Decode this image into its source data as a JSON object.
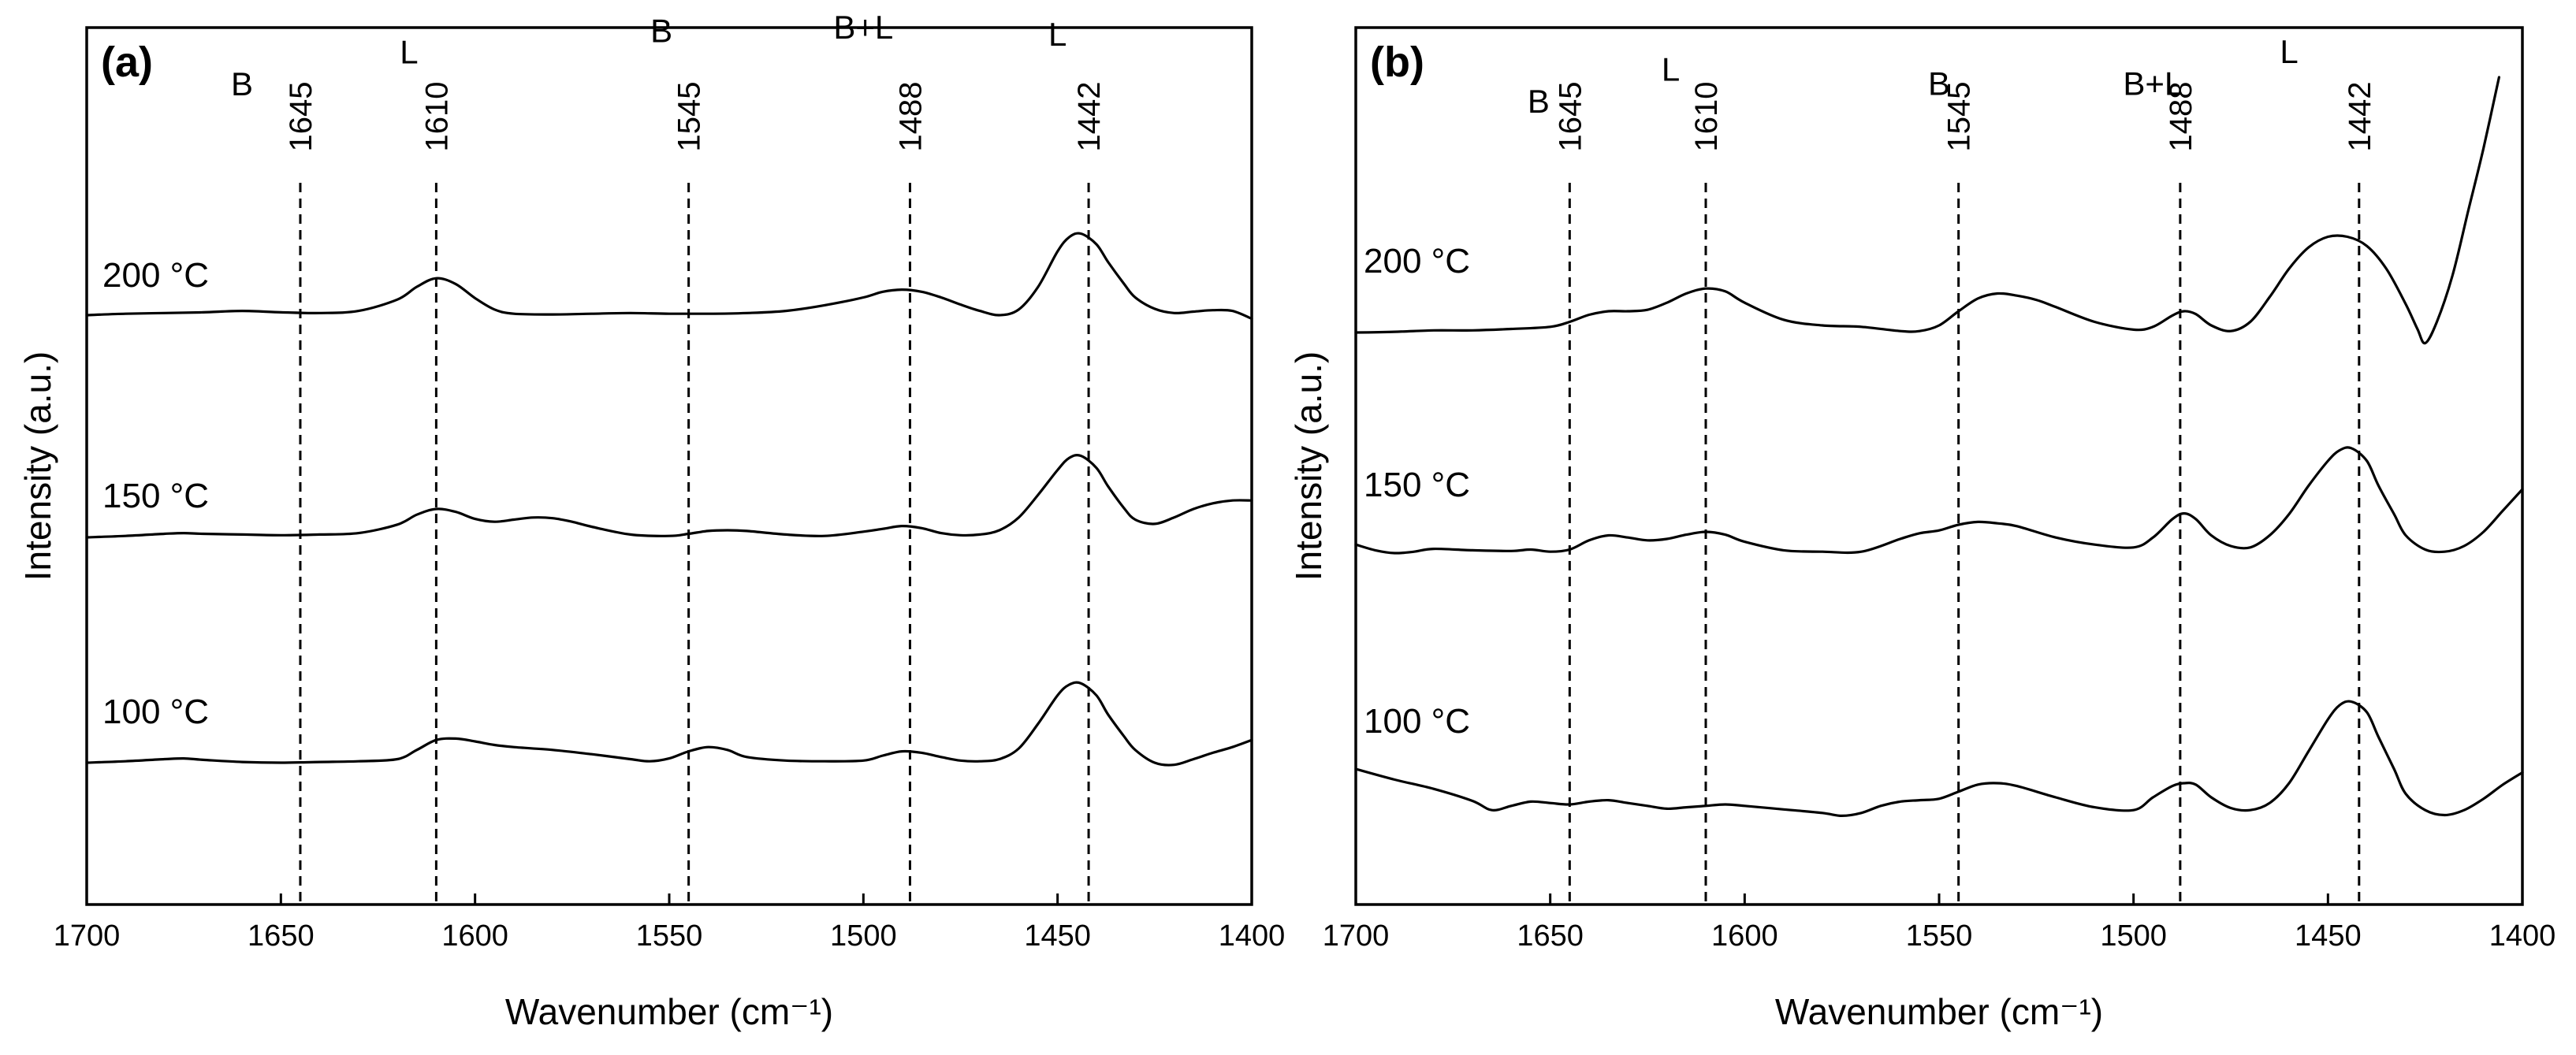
{
  "chart_data": [
    {
      "type": "line",
      "panel_label": "(a)",
      "xlabel": "Wavenumber (cm⁻¹)",
      "ylabel": "Intensity (a.u.)",
      "xlim": [
        1700,
        1400
      ],
      "x_ticks": [
        1700,
        1650,
        1600,
        1550,
        1500,
        1450,
        1400
      ],
      "reference_lines": [
        {
          "x": 1645,
          "label": "1645"
        },
        {
          "x": 1610,
          "label": "1610"
        },
        {
          "x": 1545,
          "label": "1545"
        },
        {
          "x": 1488,
          "label": "1488"
        },
        {
          "x": 1442,
          "label": "1442"
        }
      ],
      "band_labels": [
        {
          "text": "B",
          "x": 1660,
          "y": 3.1
        },
        {
          "text": "L",
          "x": 1617,
          "y": 3.55
        },
        {
          "text": "B",
          "x": 1552,
          "y": 3.85
        },
        {
          "text": "B+L",
          "x": 1500,
          "y": 3.9
        },
        {
          "text": "L",
          "x": 1450,
          "y": 3.8
        }
      ],
      "series": [
        {
          "name": "200 °C",
          "label_x": 1680,
          "x": [
            1700,
            1690,
            1680,
            1670,
            1660,
            1650,
            1640,
            1630,
            1620,
            1615,
            1610,
            1605,
            1600,
            1595,
            1590,
            1580,
            1570,
            1560,
            1550,
            1540,
            1530,
            1520,
            1510,
            1500,
            1495,
            1490,
            1485,
            1480,
            1475,
            1470,
            1465,
            1460,
            1455,
            1450,
            1447,
            1444,
            1440,
            1437,
            1433,
            1430,
            1425,
            1420,
            1415,
            1410,
            1405,
            1400
          ],
          "values": [
            0.0,
            0.02,
            0.03,
            0.04,
            0.06,
            0.04,
            0.03,
            0.06,
            0.22,
            0.4,
            0.52,
            0.44,
            0.24,
            0.08,
            0.02,
            0.01,
            0.02,
            0.03,
            0.02,
            0.02,
            0.03,
            0.06,
            0.14,
            0.25,
            0.33,
            0.36,
            0.33,
            0.25,
            0.15,
            0.06,
            0.0,
            0.08,
            0.4,
            0.9,
            1.1,
            1.15,
            1.0,
            0.75,
            0.45,
            0.25,
            0.09,
            0.03,
            0.05,
            0.07,
            0.06,
            -0.05
          ]
        },
        {
          "name": "150 °C",
          "label_x": 1680,
          "x": [
            1700,
            1690,
            1680,
            1675,
            1670,
            1660,
            1650,
            1640,
            1630,
            1620,
            1615,
            1610,
            1605,
            1600,
            1595,
            1590,
            1585,
            1580,
            1575,
            1570,
            1560,
            1550,
            1545,
            1540,
            1535,
            1530,
            1520,
            1510,
            1500,
            1495,
            1490,
            1485,
            1480,
            1475,
            1470,
            1465,
            1460,
            1455,
            1450,
            1447,
            1444,
            1440,
            1437,
            1433,
            1430,
            1425,
            1420,
            1415,
            1410,
            1405,
            1400
          ],
          "values": [
            0.0,
            0.02,
            0.05,
            0.06,
            0.05,
            0.04,
            0.03,
            0.04,
            0.06,
            0.18,
            0.32,
            0.4,
            0.36,
            0.26,
            0.22,
            0.25,
            0.28,
            0.27,
            0.22,
            0.15,
            0.04,
            0.02,
            0.05,
            0.09,
            0.1,
            0.09,
            0.04,
            0.02,
            0.08,
            0.12,
            0.16,
            0.13,
            0.06,
            0.03,
            0.04,
            0.1,
            0.28,
            0.6,
            0.95,
            1.12,
            1.15,
            0.98,
            0.72,
            0.42,
            0.25,
            0.19,
            0.28,
            0.4,
            0.48,
            0.52,
            0.52
          ]
        },
        {
          "name": "100 °C",
          "label_x": 1680,
          "x": [
            1700,
            1690,
            1680,
            1675,
            1670,
            1660,
            1650,
            1640,
            1630,
            1620,
            1615,
            1610,
            1605,
            1600,
            1595,
            1590,
            1580,
            1570,
            1560,
            1555,
            1550,
            1545,
            1540,
            1535,
            1530,
            1520,
            1510,
            1500,
            1495,
            1490,
            1485,
            1480,
            1475,
            1470,
            1465,
            1460,
            1455,
            1450,
            1447,
            1444,
            1440,
            1437,
            1433,
            1430,
            1425,
            1420,
            1415,
            1410,
            1405,
            1400
          ],
          "values": [
            0.0,
            0.02,
            0.05,
            0.06,
            0.04,
            0.01,
            0.0,
            0.01,
            0.02,
            0.05,
            0.18,
            0.32,
            0.34,
            0.3,
            0.25,
            0.22,
            0.18,
            0.12,
            0.05,
            0.02,
            0.06,
            0.16,
            0.22,
            0.18,
            0.08,
            0.03,
            0.02,
            0.03,
            0.1,
            0.16,
            0.14,
            0.08,
            0.03,
            0.02,
            0.05,
            0.2,
            0.55,
            0.95,
            1.1,
            1.12,
            0.95,
            0.68,
            0.38,
            0.18,
            0.0,
            -0.03,
            0.05,
            0.14,
            0.22,
            0.32
          ]
        }
      ]
    },
    {
      "type": "line",
      "panel_label": "(b)",
      "xlabel": "Wavenumber (cm⁻¹)",
      "ylabel": "Intensity (a.u.)",
      "xlim": [
        1700,
        1400
      ],
      "x_ticks": [
        1700,
        1650,
        1600,
        1550,
        1500,
        1450,
        1400
      ],
      "reference_lines": [
        {
          "x": 1645,
          "label": "1645"
        },
        {
          "x": 1610,
          "label": "1610"
        },
        {
          "x": 1545,
          "label": "1545"
        },
        {
          "x": 1488,
          "label": "1488"
        },
        {
          "x": 1442,
          "label": "1442"
        }
      ],
      "band_labels": [
        {
          "text": "B",
          "x": 1653,
          "y": 3.1
        },
        {
          "text": "L",
          "x": 1619,
          "y": 3.55
        },
        {
          "text": "B",
          "x": 1550,
          "y": 3.35
        },
        {
          "text": "B+L",
          "x": 1495,
          "y": 3.35
        },
        {
          "text": "L",
          "x": 1460,
          "y": 3.8
        }
      ],
      "series": [
        {
          "name": "200 °C",
          "label_x": 1675,
          "x": [
            1700,
            1690,
            1680,
            1670,
            1660,
            1650,
            1645,
            1640,
            1635,
            1630,
            1625,
            1620,
            1615,
            1610,
            1605,
            1600,
            1590,
            1580,
            1570,
            1560,
            1555,
            1550,
            1545,
            1540,
            1535,
            1530,
            1525,
            1520,
            1510,
            1500,
            1495,
            1490,
            1487,
            1484,
            1480,
            1475,
            1470,
            1465,
            1460,
            1455,
            1450,
            1445,
            1440,
            1435,
            1430,
            1427,
            1425,
            1422,
            1418,
            1414,
            1410,
            1406
          ],
          "values": [
            0.0,
            0.01,
            0.03,
            0.03,
            0.05,
            0.08,
            0.15,
            0.25,
            0.3,
            0.3,
            0.32,
            0.42,
            0.55,
            0.62,
            0.58,
            0.42,
            0.18,
            0.1,
            0.08,
            0.02,
            0.02,
            0.1,
            0.3,
            0.48,
            0.55,
            0.52,
            0.46,
            0.36,
            0.15,
            0.04,
            0.08,
            0.24,
            0.3,
            0.26,
            0.1,
            0.02,
            0.15,
            0.5,
            0.9,
            1.2,
            1.35,
            1.35,
            1.22,
            0.9,
            0.4,
            0.05,
            -0.15,
            0.15,
            0.8,
            1.7,
            2.6,
            3.6
          ]
        },
        {
          "name": "150 °C",
          "label_x": 1675,
          "x": [
            1700,
            1695,
            1690,
            1685,
            1680,
            1670,
            1660,
            1655,
            1650,
            1645,
            1640,
            1635,
            1630,
            1625,
            1620,
            1615,
            1610,
            1605,
            1600,
            1590,
            1580,
            1570,
            1560,
            1555,
            1550,
            1545,
            1540,
            1535,
            1530,
            1520,
            1510,
            1500,
            1495,
            1490,
            1487,
            1484,
            1480,
            1475,
            1470,
            1465,
            1460,
            1455,
            1450,
            1447,
            1444,
            1440,
            1437,
            1433,
            1430,
            1425,
            1420,
            1415,
            1410,
            1405,
            1400
          ],
          "values": [
            0.12,
            0.04,
            0.0,
            0.02,
            0.06,
            0.04,
            0.03,
            0.05,
            0.02,
            0.05,
            0.18,
            0.25,
            0.22,
            0.18,
            0.2,
            0.26,
            0.3,
            0.26,
            0.16,
            0.04,
            0.02,
            0.02,
            0.2,
            0.28,
            0.32,
            0.4,
            0.44,
            0.42,
            0.38,
            0.22,
            0.12,
            0.08,
            0.22,
            0.48,
            0.56,
            0.48,
            0.25,
            0.1,
            0.08,
            0.25,
            0.55,
            0.95,
            1.3,
            1.45,
            1.48,
            1.3,
            0.95,
            0.55,
            0.25,
            0.05,
            0.02,
            0.1,
            0.3,
            0.6,
            0.9
          ]
        },
        {
          "name": "100 °C",
          "label_x": 1675,
          "x": [
            1700,
            1690,
            1680,
            1670,
            1665,
            1660,
            1655,
            1650,
            1645,
            1640,
            1635,
            1630,
            1625,
            1620,
            1615,
            1610,
            1605,
            1600,
            1590,
            1580,
            1575,
            1570,
            1565,
            1560,
            1555,
            1550,
            1545,
            1540,
            1535,
            1530,
            1520,
            1510,
            1500,
            1495,
            1490,
            1487,
            1484,
            1480,
            1475,
            1470,
            1465,
            1460,
            1455,
            1450,
            1447,
            1444,
            1440,
            1437,
            1433,
            1430,
            1425,
            1420,
            1415,
            1410,
            1405,
            1400
          ],
          "values": [
            0.6,
            0.45,
            0.32,
            0.15,
            0.02,
            0.08,
            0.14,
            0.12,
            0.1,
            0.14,
            0.16,
            0.12,
            0.08,
            0.04,
            0.06,
            0.08,
            0.1,
            0.08,
            0.03,
            -0.02,
            -0.06,
            -0.02,
            0.08,
            0.14,
            0.16,
            0.18,
            0.28,
            0.38,
            0.4,
            0.36,
            0.2,
            0.06,
            0.02,
            0.2,
            0.36,
            0.4,
            0.38,
            0.2,
            0.05,
            0.02,
            0.12,
            0.4,
            0.85,
            1.3,
            1.5,
            1.55,
            1.4,
            1.05,
            0.6,
            0.25,
            0.02,
            -0.05,
            0.02,
            0.18,
            0.38,
            0.55
          ]
        }
      ]
    }
  ]
}
